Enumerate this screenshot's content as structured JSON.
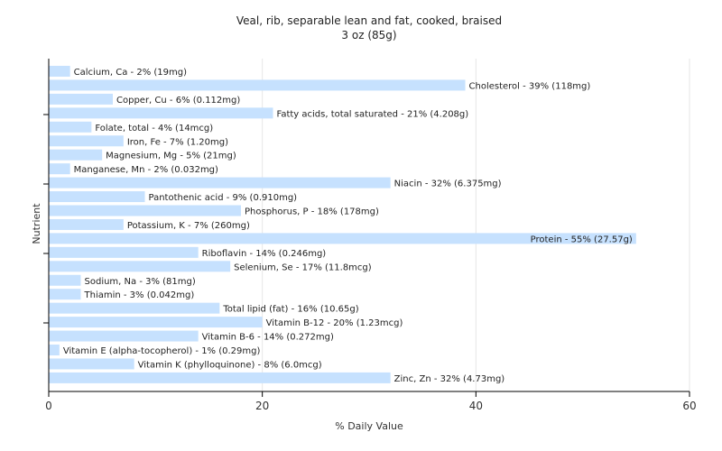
{
  "chart_data": {
    "type": "bar",
    "orientation": "horizontal",
    "title": "Veal, rib, separable lean and fat, cooked, braised",
    "subtitle": "3 oz (85g)",
    "xlabel": "% Daily Value",
    "ylabel": "Nutrient",
    "xlim": [
      0,
      60
    ],
    "x_ticks": [
      "0",
      "20",
      "40",
      "60"
    ],
    "grid": true,
    "bar_color": "#c6e1fe",
    "categories": [
      "Calcium, Ca",
      "Cholesterol",
      "Copper, Cu",
      "Fatty acids, total saturated",
      "Folate, total",
      "Iron, Fe",
      "Magnesium, Mg",
      "Manganese, Mn",
      "Niacin",
      "Pantothenic acid",
      "Phosphorus, P",
      "Potassium, K",
      "Protein",
      "Riboflavin",
      "Selenium, Se",
      "Sodium, Na",
      "Thiamin",
      "Total lipid (fat)",
      "Vitamin B-12",
      "Vitamin B-6",
      "Vitamin E (alpha-tocopherol)",
      "Vitamin K (phylloquinone)",
      "Zinc, Zn"
    ],
    "values": [
      2,
      39,
      6,
      21,
      4,
      7,
      5,
      2,
      32,
      9,
      18,
      7,
      55,
      14,
      17,
      3,
      3,
      16,
      20,
      14,
      1,
      8,
      32
    ],
    "labels": [
      "Calcium, Ca - 2% (19mg)",
      "Cholesterol - 39% (118mg)",
      "Copper, Cu - 6% (0.112mg)",
      "Fatty acids, total saturated - 21% (4.208g)",
      "Folate, total - 4% (14mcg)",
      "Iron, Fe - 7% (1.20mg)",
      "Magnesium, Mg - 5% (21mg)",
      "Manganese, Mn - 2% (0.032mg)",
      "Niacin - 32% (6.375mg)",
      "Pantothenic acid - 9% (0.910mg)",
      "Phosphorus, P - 18% (178mg)",
      "Potassium, K - 7% (260mg)",
      "Protein - 55% (27.57g)",
      "Riboflavin - 14% (0.246mg)",
      "Selenium, Se - 17% (11.8mcg)",
      "Sodium, Na - 3% (81mg)",
      "Thiamin - 3% (0.042mg)",
      "Total lipid (fat) - 16% (10.65g)",
      "Vitamin B-12 - 20% (1.23mcg)",
      "Vitamin B-6 - 14% (0.272mg)",
      "Vitamin E (alpha-tocopherol) - 1% (0.29mg)",
      "Vitamin K (phylloquinone) - 8% (6.0mcg)",
      "Zinc, Zn - 32% (4.73mg)"
    ]
  }
}
